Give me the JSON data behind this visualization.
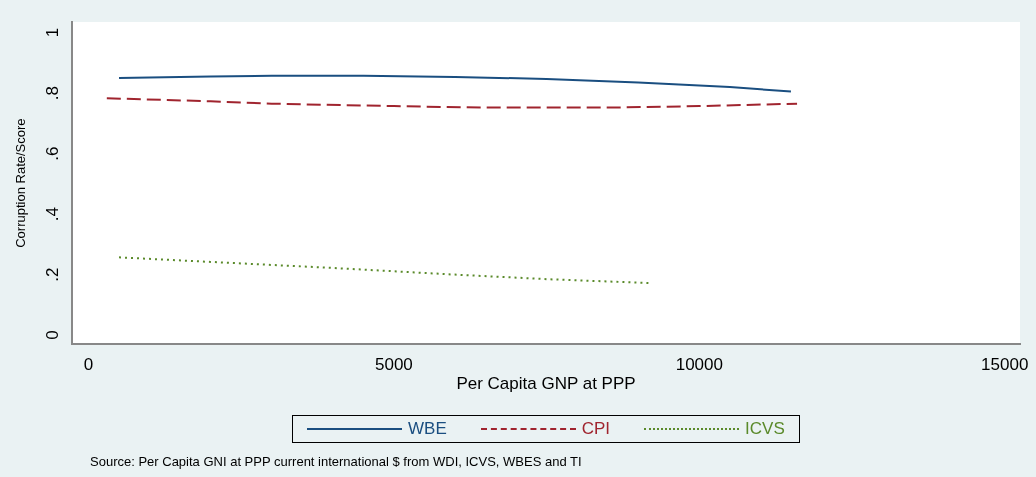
{
  "chart_data": {
    "type": "line",
    "xlabel": "Per Capita GNP at PPP",
    "ylabel": "Corruption Rate/Score",
    "annotations": [
      "Source: Per Capita GNI at PPP current international $ from WDI, ICVS, WBES and TI"
    ],
    "xlim": [
      -270,
      15250
    ],
    "xticks": [
      0,
      5000,
      10000,
      15000
    ],
    "ylim": [
      -0.03,
      1.035
    ],
    "yticks": [
      {
        "value": 0,
        "label": "0"
      },
      {
        "value": 0.2,
        "label": ".2"
      },
      {
        "value": 0.4,
        "label": ".4"
      },
      {
        "value": 0.6,
        "label": ".6"
      },
      {
        "value": 0.8,
        "label": ".8"
      },
      {
        "value": 1,
        "label": "1"
      }
    ],
    "grid": false,
    "legend": "bottom",
    "marker": "none",
    "series": [
      {
        "name": "WBE",
        "color": "#1a4e80",
        "line_style": "solid",
        "x": [
          500,
          2000,
          3000,
          4500,
          6000,
          7500,
          9000,
          10500,
          11500
        ],
        "values": [
          0.85,
          0.855,
          0.857,
          0.857,
          0.853,
          0.847,
          0.835,
          0.82,
          0.805
        ]
      },
      {
        "name": "CPI",
        "color": "#a0242e",
        "line_style": "dashed",
        "x": [
          300,
          2000,
          3000,
          5000,
          6500,
          8500,
          10000,
          11600
        ],
        "values": [
          0.783,
          0.773,
          0.765,
          0.757,
          0.752,
          0.752,
          0.757,
          0.765
        ]
      },
      {
        "name": "ICVS",
        "color": "#5a8a2a",
        "line_style": "dotted",
        "x": [
          500,
          2000,
          4000,
          6000,
          7500,
          9200
        ],
        "values": [
          0.257,
          0.242,
          0.222,
          0.2,
          0.185,
          0.172
        ]
      }
    ]
  }
}
